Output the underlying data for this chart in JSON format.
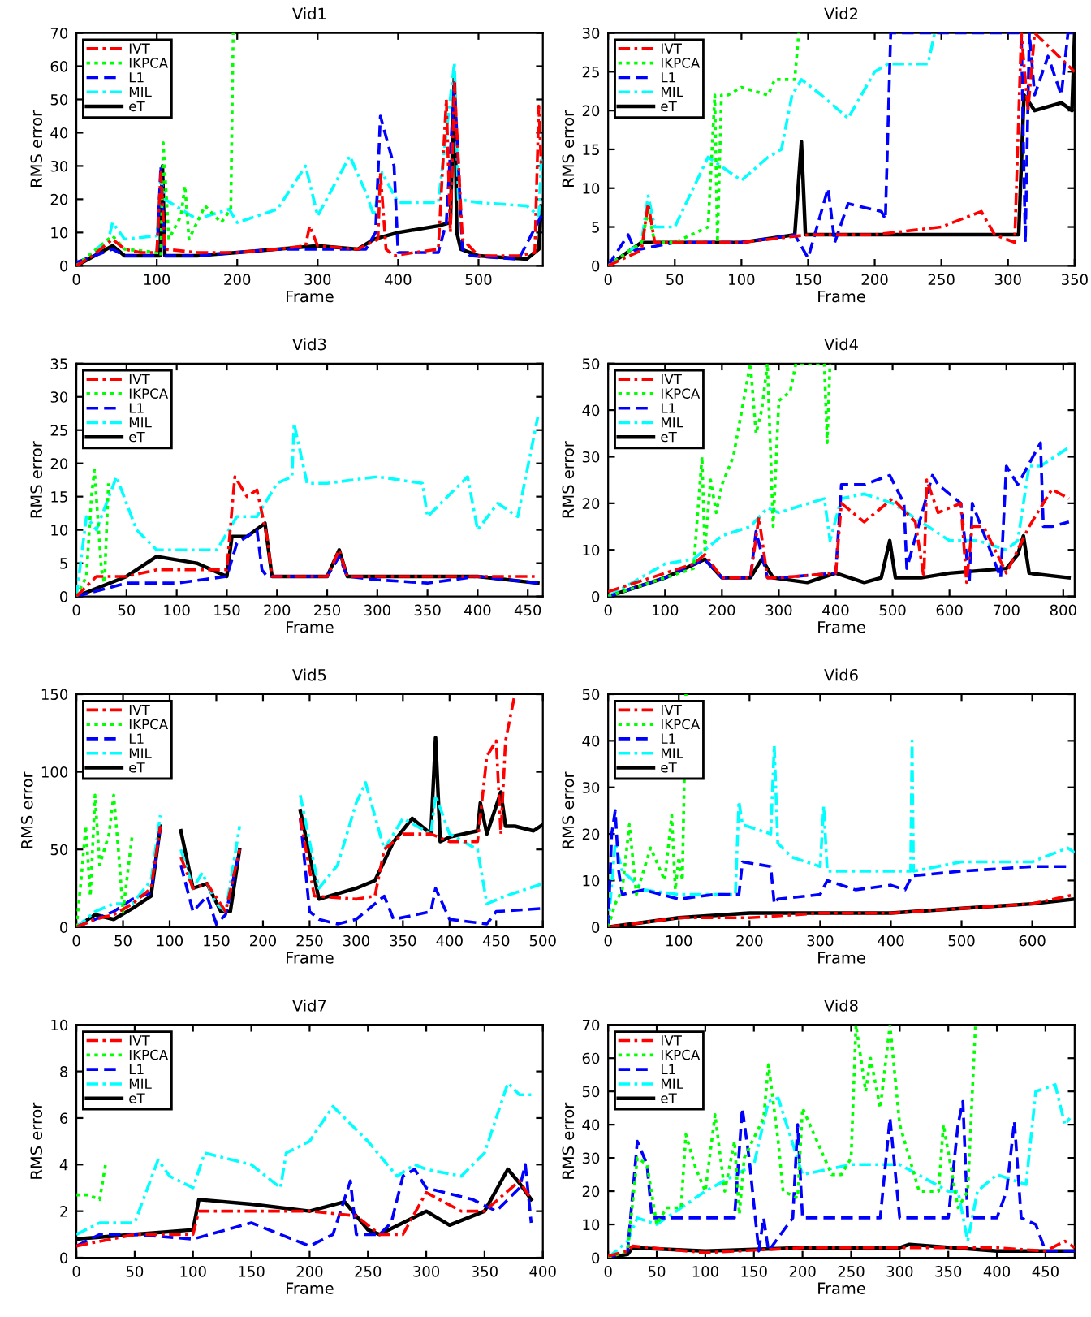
{
  "chart_data": [
    {
      "type": "line",
      "title": "Vid1",
      "xlabel": "Frame",
      "ylabel": "RMS error",
      "xlim": [
        0,
        580
      ],
      "ylim": [
        0,
        70
      ],
      "xticks": [
        0,
        100,
        200,
        300,
        400,
        500
      ],
      "yticks": [
        0,
        10,
        20,
        30,
        40,
        50,
        60,
        70
      ],
      "legend": "top left",
      "grid": false,
      "series": [
        {
          "name": "IVT",
          "color": "#ff0000",
          "line_style": "dashdot",
          "x": [
            0,
            20,
            45,
            60,
            80,
            100,
            105,
            110,
            150,
            200,
            250,
            285,
            290,
            300,
            350,
            375,
            378,
            385,
            395,
            420,
            450,
            460,
            465,
            470,
            480,
            500,
            550,
            570,
            575,
            578
          ],
          "values": [
            0,
            3,
            8,
            5,
            4,
            4,
            28,
            5,
            4,
            4,
            5,
            6,
            12,
            6,
            5,
            8,
            28,
            5,
            3,
            4,
            5,
            50,
            10,
            55,
            8,
            3,
            3,
            4,
            48,
            30
          ]
        },
        {
          "name": "IKPCA",
          "color": "#00ff00",
          "line_style": "dotted",
          "x": [
            0,
            20,
            45,
            60,
            100,
            105,
            108,
            115,
            130,
            135,
            140,
            160,
            180,
            192,
            195
          ],
          "values": [
            0,
            4,
            9,
            5,
            4,
            3,
            37,
            8,
            15,
            24,
            8,
            18,
            13,
            17,
            70
          ]
        },
        {
          "name": "L1",
          "color": "#0000ff",
          "line_style": "dashed",
          "x": [
            0,
            45,
            60,
            100,
            105,
            110,
            150,
            200,
            250,
            300,
            360,
            372,
            378,
            395,
            400,
            450,
            460,
            470,
            480,
            490,
            550,
            578
          ],
          "values": [
            1,
            5,
            3,
            3,
            30,
            3,
            3,
            4,
            5,
            5,
            5,
            10,
            45,
            30,
            4,
            4,
            13,
            55,
            5,
            3,
            2,
            15
          ]
        },
        {
          "name": "MIL",
          "color": "#00ffff",
          "line_style": "dashdot",
          "x": [
            0,
            40,
            45,
            60,
            100,
            105,
            110,
            150,
            190,
            200,
            250,
            285,
            300,
            340,
            360,
            370,
            380,
            400,
            450,
            470,
            475,
            500,
            560,
            575,
            578
          ],
          "values": [
            0,
            8,
            13,
            8,
            9,
            26,
            20,
            14,
            17,
            13,
            17,
            30,
            15,
            33,
            22,
            15,
            28,
            19,
            19,
            61,
            20,
            19,
            18,
            15,
            32
          ]
        },
        {
          "name": "eT",
          "color": "#000000",
          "line_style": "solid",
          "x": [
            0,
            45,
            60,
            100,
            104,
            107,
            110,
            150,
            200,
            250,
            300,
            350,
            370,
            400,
            450,
            465,
            470,
            473,
            478,
            500,
            560,
            575,
            578
          ],
          "values": [
            0,
            6,
            3,
            3,
            3,
            30,
            3,
            3,
            4,
            5,
            6,
            5,
            8,
            10,
            12,
            13,
            57,
            10,
            5,
            3,
            2,
            5,
            18
          ]
        }
      ]
    },
    {
      "type": "line",
      "title": "Vid2",
      "xlabel": "Frame",
      "ylabel": "RMS error",
      "xlim": [
        0,
        350
      ],
      "ylim": [
        0,
        30
      ],
      "xticks": [
        0,
        50,
        100,
        150,
        200,
        250,
        300,
        350
      ],
      "yticks": [
        0,
        5,
        10,
        15,
        20,
        25,
        30
      ],
      "legend": "top left",
      "grid": false,
      "series": [
        {
          "name": "IVT",
          "color": "#ff0000",
          "line_style": "dashdot",
          "x": [
            0,
            25,
            30,
            35,
            50,
            100,
            150,
            200,
            250,
            280,
            290,
            305,
            310,
            315,
            320,
            350
          ],
          "values": [
            0,
            2,
            8,
            3,
            3,
            3,
            4,
            4,
            5,
            7,
            4,
            3,
            30,
            20,
            30,
            25
          ]
        },
        {
          "name": "IKPCA",
          "color": "#00ff00",
          "line_style": "dotted",
          "x": [
            0,
            25,
            30,
            35,
            50,
            75,
            80,
            82,
            85,
            90,
            100,
            120,
            125,
            140,
            143
          ],
          "values": [
            0,
            3,
            7,
            3,
            3,
            5,
            22,
            3,
            22,
            22,
            23,
            22,
            24,
            24,
            30
          ]
        },
        {
          "name": "L1",
          "color": "#0000ff",
          "line_style": "dashed",
          "x": [
            0,
            15,
            20,
            50,
            100,
            140,
            150,
            165,
            170,
            180,
            205,
            208,
            212,
            310,
            313,
            316,
            320,
            330,
            340,
            345,
            350
          ],
          "values": [
            0,
            4,
            2,
            3,
            3,
            4,
            1,
            10,
            3,
            8,
            7,
            6,
            30,
            30,
            3,
            30,
            22,
            27,
            22,
            30,
            30
          ]
        },
        {
          "name": "MIL",
          "color": "#00ffff",
          "line_style": "dashdot",
          "x": [
            0,
            25,
            30,
            35,
            50,
            75,
            100,
            120,
            130,
            138,
            145,
            160,
            180,
            200,
            210,
            240,
            245
          ],
          "values": [
            0,
            3,
            9,
            5,
            5,
            14,
            11,
            14,
            15,
            22,
            24,
            22,
            19,
            25,
            26,
            26,
            30
          ]
        },
        {
          "name": "eT",
          "color": "#000000",
          "line_style": "solid",
          "x": [
            0,
            25,
            50,
            100,
            140,
            145,
            148,
            150,
            200,
            250,
            300,
            308,
            312,
            320,
            340,
            348,
            350
          ],
          "values": [
            0,
            3,
            3,
            3,
            4,
            16,
            4,
            4,
            4,
            4,
            4,
            4,
            22,
            20,
            21,
            20,
            30
          ]
        }
      ]
    },
    {
      "type": "line",
      "title": "Vid3",
      "xlabel": "Frame",
      "ylabel": "RMS error",
      "xlim": [
        0,
        465
      ],
      "ylim": [
        0,
        35
      ],
      "xticks": [
        0,
        50,
        100,
        150,
        200,
        250,
        300,
        350,
        400,
        450
      ],
      "yticks": [
        0,
        5,
        10,
        15,
        20,
        25,
        30,
        35
      ],
      "legend": "top left",
      "grid": false,
      "series": [
        {
          "name": "IVT",
          "color": "#ff0000",
          "line_style": "dashdot",
          "x": [
            0,
            20,
            50,
            80,
            100,
            150,
            155,
            158,
            170,
            180,
            190,
            195,
            200,
            250,
            262,
            270,
            300,
            400,
            460
          ],
          "values": [
            0,
            3,
            3,
            4,
            4,
            4,
            13,
            18,
            15,
            16,
            9,
            3,
            3,
            3,
            7,
            3,
            3,
            3,
            3
          ]
        },
        {
          "name": "IKPCA",
          "color": "#00ff00",
          "line_style": "dotted",
          "x": [
            0,
            10,
            15,
            18,
            25,
            28,
            32
          ],
          "values": [
            0,
            3,
            15,
            19,
            4,
            2,
            17
          ]
        },
        {
          "name": "L1",
          "color": "#0000ff",
          "line_style": "dashed",
          "x": [
            0,
            50,
            100,
            150,
            160,
            180,
            185,
            190,
            200,
            250,
            262,
            270,
            300,
            350,
            400,
            460
          ],
          "values": [
            0,
            2,
            2,
            3,
            8,
            10,
            4,
            3,
            3,
            3,
            6,
            3,
            2.5,
            2,
            3,
            2
          ]
        },
        {
          "name": "MIL",
          "color": "#00ffff",
          "line_style": "dashdot",
          "x": [
            0,
            10,
            20,
            40,
            60,
            80,
            100,
            140,
            160,
            180,
            200,
            215,
            217,
            230,
            250,
            300,
            345,
            350,
            390,
            400,
            420,
            440,
            460
          ],
          "values": [
            0,
            12,
            10,
            18,
            10,
            7,
            7,
            7,
            12,
            12,
            17,
            18,
            26,
            17,
            17,
            18,
            17,
            12,
            18,
            10,
            14,
            12,
            27
          ]
        },
        {
          "name": "eT",
          "color": "#000000",
          "line_style": "solid",
          "x": [
            0,
            50,
            80,
            120,
            150,
            155,
            170,
            188,
            195,
            200,
            250,
            262,
            270,
            300,
            400,
            460
          ],
          "values": [
            0,
            3,
            6,
            5,
            3,
            9,
            9,
            11,
            3,
            3,
            3,
            7,
            3,
            3,
            3,
            2
          ]
        }
      ]
    },
    {
      "type": "line",
      "title": "Vid4",
      "xlabel": "Frame",
      "ylabel": "RMS error",
      "xlim": [
        0,
        820
      ],
      "ylim": [
        0,
        50
      ],
      "xticks": [
        0,
        100,
        200,
        300,
        400,
        500,
        600,
        700,
        800
      ],
      "yticks": [
        0,
        10,
        20,
        30,
        40,
        50
      ],
      "legend": "top left",
      "grid": false,
      "series": [
        {
          "name": "IVT",
          "color": "#ff0000",
          "line_style": "dashdot",
          "x": [
            0,
            100,
            150,
            170,
            200,
            250,
            265,
            280,
            300,
            400,
            410,
            450,
            500,
            540,
            555,
            560,
            580,
            620,
            630,
            640,
            660,
            700,
            720,
            740,
            780,
            810
          ],
          "values": [
            1,
            5,
            7,
            9,
            4,
            4,
            17,
            4,
            4,
            5,
            20,
            16,
            21,
            16,
            4,
            25,
            18,
            20,
            3,
            15,
            15,
            5,
            10,
            15,
            23,
            21
          ]
        },
        {
          "name": "IKPCA",
          "color": "#00ff00",
          "line_style": "dotted",
          "x": [
            0,
            150,
            165,
            170,
            180,
            190,
            200,
            220,
            250,
            260,
            270,
            280,
            290,
            300,
            320,
            330,
            380,
            385,
            390
          ],
          "values": [
            0,
            6,
            30,
            10,
            25,
            18,
            24,
            30,
            50,
            35,
            40,
            50,
            15,
            42,
            44,
            50,
            50,
            33,
            50
          ]
        },
        {
          "name": "L1",
          "color": "#0000ff",
          "line_style": "dashed",
          "x": [
            0,
            100,
            170,
            200,
            250,
            260,
            280,
            300,
            400,
            410,
            450,
            495,
            520,
            525,
            570,
            580,
            620,
            635,
            640,
            690,
            700,
            720,
            760,
            765,
            780,
            810
          ],
          "values": [
            0,
            4,
            8,
            4,
            4,
            14,
            4,
            4,
            5,
            24,
            24,
            26,
            20,
            6,
            26,
            24,
            20,
            3,
            20,
            4,
            28,
            24,
            33,
            15,
            15,
            16
          ]
        },
        {
          "name": "MIL",
          "color": "#00ffff",
          "line_style": "dashdot",
          "x": [
            0,
            100,
            150,
            200,
            250,
            280,
            300,
            380,
            390,
            410,
            450,
            500,
            600,
            650,
            700,
            720,
            740,
            760,
            810
          ],
          "values": [
            0,
            7,
            8,
            13,
            15,
            19,
            18,
            21,
            12,
            21,
            22,
            20,
            12,
            12,
            10,
            12,
            28,
            28,
            32
          ]
        },
        {
          "name": "eT",
          "color": "#000000",
          "line_style": "solid",
          "x": [
            0,
            100,
            170,
            200,
            250,
            270,
            290,
            350,
            400,
            450,
            480,
            495,
            505,
            550,
            600,
            700,
            720,
            730,
            740,
            810
          ],
          "values": [
            0,
            4,
            8,
            4,
            4,
            8,
            4,
            3,
            5,
            3,
            4,
            12,
            4,
            4,
            5,
            6,
            9,
            13,
            5,
            4
          ]
        }
      ]
    },
    {
      "type": "line",
      "title": "Vid5",
      "xlabel": "Frame",
      "ylabel": "RMS error",
      "xlim": [
        0,
        500
      ],
      "ylim": [
        0,
        150
      ],
      "xticks": [
        0,
        50,
        100,
        150,
        200,
        250,
        300,
        350,
        400,
        450,
        500
      ],
      "yticks": [
        0,
        50,
        100,
        150
      ],
      "legend": "top left",
      "grid": false,
      "series": [
        {
          "name": "IVT",
          "color": "#ff0000",
          "line_style": "dashdot",
          "x": [
            0,
            20,
            40,
            60,
            80,
            90,
            100,
            112,
            125,
            140,
            160,
            175,
            200,
            240,
            255,
            300,
            320,
            330,
            350,
            380,
            400,
            430,
            440,
            450,
            455,
            460,
            470
          ],
          "values": [
            0,
            5,
            8,
            15,
            25,
            65,
            null,
            45,
            25,
            28,
            10,
            50,
            null,
            70,
            20,
            18,
            20,
            50,
            60,
            60,
            55,
            55,
            110,
            120,
            60,
            120,
            150
          ]
        },
        {
          "name": "IKPCA",
          "color": "#00ff00",
          "line_style": "dotted",
          "x": [
            0,
            5,
            10,
            15,
            20,
            25,
            35,
            40,
            45,
            50,
            60
          ],
          "values": [
            0,
            30,
            65,
            20,
            85,
            40,
            60,
            85,
            50,
            10,
            60
          ]
        },
        {
          "name": "L1",
          "color": "#0000ff",
          "line_style": "dashed",
          "x": [
            0,
            40,
            60,
            80,
            90,
            100,
            112,
            125,
            140,
            150,
            160,
            175,
            200,
            240,
            250,
            260,
            280,
            300,
            330,
            340,
            380,
            385,
            400,
            440,
            450,
            500
          ],
          "values": [
            0,
            10,
            18,
            22,
            65,
            null,
            40,
            10,
            20,
            2,
            8,
            50,
            null,
            70,
            10,
            5,
            2,
            5,
            20,
            5,
            10,
            25,
            5,
            2,
            10,
            12
          ]
        },
        {
          "name": "MIL",
          "color": "#00ffff",
          "line_style": "dashdot",
          "x": [
            0,
            20,
            40,
            60,
            80,
            90,
            100,
            112,
            125,
            135,
            150,
            160,
            175,
            200,
            240,
            260,
            280,
            300,
            310,
            330,
            350,
            380,
            385,
            400,
            430,
            440,
            460,
            500
          ],
          "values": [
            0,
            10,
            15,
            15,
            30,
            72,
            null,
            50,
            25,
            35,
            15,
            10,
            65,
            null,
            85,
            25,
            40,
            80,
            93,
            50,
            70,
            60,
            85,
            60,
            50,
            15,
            20,
            28
          ]
        },
        {
          "name": "eT",
          "color": "#000000",
          "line_style": "solid",
          "x": [
            0,
            20,
            40,
            60,
            80,
            90,
            100,
            112,
            125,
            140,
            155,
            165,
            175,
            200,
            240,
            260,
            300,
            320,
            340,
            360,
            380,
            385,
            390,
            400,
            430,
            433,
            440,
            455,
            460,
            470,
            490,
            500
          ],
          "values": [
            0,
            8,
            5,
            12,
            20,
            65,
            null,
            62,
            25,
            28,
            10,
            10,
            50,
            null,
            75,
            18,
            25,
            30,
            55,
            70,
            60,
            122,
            55,
            58,
            62,
            80,
            60,
            87,
            65,
            65,
            62,
            66
          ]
        }
      ]
    },
    {
      "type": "line",
      "title": "Vid6",
      "xlabel": "Frame",
      "ylabel": "RMS error",
      "xlim": [
        0,
        660
      ],
      "ylim": [
        0,
        50
      ],
      "xticks": [
        0,
        100,
        200,
        300,
        400,
        500,
        600
      ],
      "yticks": [
        0,
        10,
        20,
        30,
        40,
        50
      ],
      "legend": "top left",
      "grid": false,
      "series": [
        {
          "name": "IVT",
          "color": "#ff0000",
          "line_style": "dashdot",
          "x": [
            0,
            100,
            200,
            300,
            400,
            500,
            600,
            660
          ],
          "values": [
            0,
            2,
            2,
            3,
            3,
            4,
            5,
            7
          ]
        },
        {
          "name": "IKPCA",
          "color": "#00ff00",
          "line_style": "dotted",
          "x": [
            0,
            10,
            20,
            30,
            40,
            60,
            80,
            90,
            95,
            100,
            105,
            110
          ],
          "values": [
            0,
            5,
            8,
            22,
            7,
            17,
            10,
            24,
            8,
            15,
            10,
            50
          ]
        },
        {
          "name": "L1",
          "color": "#0000ff",
          "line_style": "dashed",
          "x": [
            0,
            5,
            10,
            15,
            20,
            50,
            100,
            150,
            185,
            190,
            230,
            235,
            240,
            300,
            310,
            350,
            400,
            420,
            430,
            500,
            600,
            650
          ],
          "values": [
            0,
            20,
            25,
            12,
            7,
            8,
            6,
            7,
            7,
            14,
            13,
            5,
            6,
            7,
            10,
            8,
            9,
            8,
            11,
            12,
            13,
            13
          ]
        },
        {
          "name": "MIL",
          "color": "#00ffff",
          "line_style": "dashdot",
          "x": [
            0,
            10,
            20,
            50,
            100,
            150,
            180,
            185,
            190,
            230,
            235,
            240,
            260,
            300,
            305,
            310,
            400,
            428,
            430,
            432,
            500,
            600,
            650,
            660
          ],
          "values": [
            0,
            18,
            12,
            8,
            7,
            7,
            7,
            27,
            22,
            20,
            39,
            18,
            15,
            13,
            26,
            12,
            12,
            12,
            40,
            12,
            14,
            14,
            17,
            16
          ]
        },
        {
          "name": "eT",
          "color": "#000000",
          "line_style": "solid",
          "x": [
            0,
            100,
            200,
            300,
            400,
            500,
            600,
            660
          ],
          "values": [
            0,
            2,
            3,
            3,
            3,
            4,
            5,
            6
          ]
        }
      ]
    },
    {
      "type": "line",
      "title": "Vid7",
      "xlabel": "Frame",
      "ylabel": "RMS error",
      "xlim": [
        0,
        400
      ],
      "ylim": [
        0,
        10
      ],
      "xticks": [
        0,
        50,
        100,
        150,
        200,
        250,
        300,
        350,
        400
      ],
      "yticks": [
        0,
        2,
        4,
        6,
        8,
        10
      ],
      "legend": "top left",
      "grid": false,
      "series": [
        {
          "name": "IVT",
          "color": "#ff0000",
          "line_style": "dashdot",
          "x": [
            0,
            50,
            100,
            105,
            150,
            200,
            240,
            260,
            280,
            300,
            330,
            350,
            380,
            390
          ],
          "values": [
            0.5,
            1,
            1,
            2,
            2,
            2,
            1.8,
            1,
            1,
            2.8,
            2,
            2,
            3.3,
            2.5
          ]
        },
        {
          "name": "IKPCA",
          "color": "#00ff00",
          "line_style": "dotted",
          "x": [
            0,
            10,
            20,
            25
          ],
          "values": [
            2.7,
            2.7,
            2.5,
            4
          ]
        },
        {
          "name": "L1",
          "color": "#0000ff",
          "line_style": "dashed",
          "x": [
            0,
            20,
            50,
            100,
            150,
            200,
            220,
            235,
            240,
            260,
            270,
            280,
            290,
            300,
            340,
            360,
            380,
            385,
            390
          ],
          "values": [
            0.5,
            1,
            1,
            0.8,
            1.5,
            0.5,
            1,
            3.3,
            1,
            1,
            1.5,
            3.5,
            3.8,
            3,
            2.5,
            2,
            3,
            4,
            1.5
          ]
        },
        {
          "name": "MIL",
          "color": "#00ffff",
          "line_style": "dashdot",
          "x": [
            0,
            20,
            50,
            70,
            80,
            100,
            110,
            150,
            175,
            180,
            200,
            220,
            250,
            275,
            290,
            300,
            330,
            350,
            370,
            380,
            390
          ],
          "values": [
            1,
            1.5,
            1.5,
            4.2,
            3.5,
            3,
            4.5,
            4,
            3,
            4.5,
            5,
            6.5,
            5,
            3.5,
            4,
            3.8,
            3.5,
            4.5,
            7.5,
            7,
            7
          ]
        },
        {
          "name": "eT",
          "color": "#000000",
          "line_style": "solid",
          "x": [
            0,
            50,
            100,
            105,
            150,
            200,
            230,
            250,
            260,
            280,
            300,
            320,
            350,
            370,
            380,
            390
          ],
          "values": [
            0.8,
            1,
            1.2,
            2.5,
            2.3,
            2,
            2.4,
            1.2,
            1,
            1.5,
            2,
            1.4,
            2,
            3.8,
            3.2,
            2.5
          ]
        }
      ]
    },
    {
      "type": "line",
      "title": "Vid8",
      "xlabel": "Frame",
      "ylabel": "RMS error",
      "xlim": [
        0,
        480
      ],
      "ylim": [
        0,
        70
      ],
      "xticks": [
        0,
        50,
        100,
        150,
        200,
        250,
        300,
        350,
        400,
        450
      ],
      "yticks": [
        0,
        10,
        20,
        30,
        40,
        50,
        60,
        70
      ],
      "legend": "top left",
      "grid": false,
      "series": [
        {
          "name": "IVT",
          "color": "#ff0000",
          "line_style": "dashdot",
          "x": [
            0,
            20,
            25,
            100,
            200,
            300,
            400,
            450,
            470,
            480
          ],
          "values": [
            0.5,
            2,
            3.5,
            1.5,
            3,
            3,
            3,
            2,
            5,
            3
          ]
        },
        {
          "name": "IKPCA",
          "color": "#00ff00",
          "line_style": "dotted",
          "x": [
            0,
            20,
            30,
            40,
            50,
            60,
            75,
            80,
            90,
            100,
            110,
            120,
            130,
            135,
            140,
            160,
            165,
            175,
            180,
            195,
            200,
            230,
            240,
            250,
            255,
            265,
            270,
            280,
            290,
            300,
            320,
            340,
            345,
            360,
            370,
            378
          ],
          "values": [
            0,
            2,
            30,
            28,
            10,
            15,
            15,
            37,
            27,
            20,
            43,
            20,
            35,
            13,
            30,
            42,
            58,
            35,
            20,
            18,
            45,
            25,
            25,
            30,
            70,
            50,
            60,
            45,
            70,
            40,
            20,
            20,
            40,
            15,
            20,
            70
          ]
        },
        {
          "name": "L1",
          "color": "#0000ff",
          "line_style": "dashed",
          "x": [
            0,
            20,
            30,
            40,
            45,
            50,
            100,
            130,
            138,
            145,
            155,
            160,
            165,
            190,
            195,
            200,
            250,
            280,
            290,
            300,
            320,
            350,
            360,
            365,
            370,
            400,
            410,
            418,
            425,
            440,
            450,
            480
          ],
          "values": [
            0,
            2,
            35,
            28,
            12,
            12,
            12,
            12,
            45,
            30,
            2,
            12,
            2,
            12,
            40,
            12,
            12,
            12,
            42,
            12,
            12,
            12,
            40,
            47,
            12,
            12,
            20,
            41,
            12,
            10,
            2,
            2
          ]
        },
        {
          "name": "MIL",
          "color": "#00ffff",
          "line_style": "dashdot",
          "x": [
            0,
            20,
            30,
            50,
            100,
            150,
            165,
            175,
            200,
            250,
            300,
            350,
            360,
            370,
            380,
            400,
            430,
            440,
            450,
            460,
            470,
            475
          ],
          "values": [
            0,
            5,
            12,
            10,
            20,
            28,
            47,
            48,
            25,
            28,
            28,
            20,
            20,
            5,
            20,
            25,
            22,
            50,
            51,
            52,
            40,
            42
          ]
        },
        {
          "name": "eT",
          "color": "#000000",
          "line_style": "solid",
          "x": [
            0,
            20,
            25,
            100,
            200,
            300,
            310,
            400,
            450,
            480
          ],
          "values": [
            0,
            1,
            3,
            2,
            3,
            3,
            4,
            2,
            2,
            2
          ]
        }
      ]
    }
  ]
}
